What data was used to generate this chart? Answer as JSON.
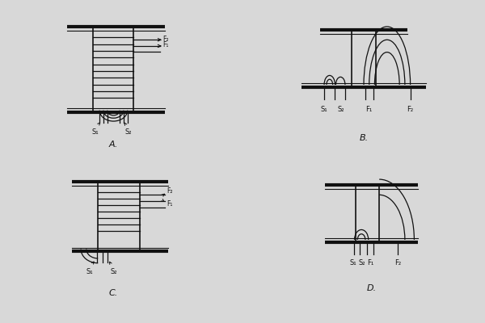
{
  "bg_color": "#d8d8d8",
  "line_color": "#111111",
  "fig_width": 6.0,
  "fig_height": 4.0,
  "titles": [
    "A.",
    "B.",
    "C.",
    "D."
  ]
}
